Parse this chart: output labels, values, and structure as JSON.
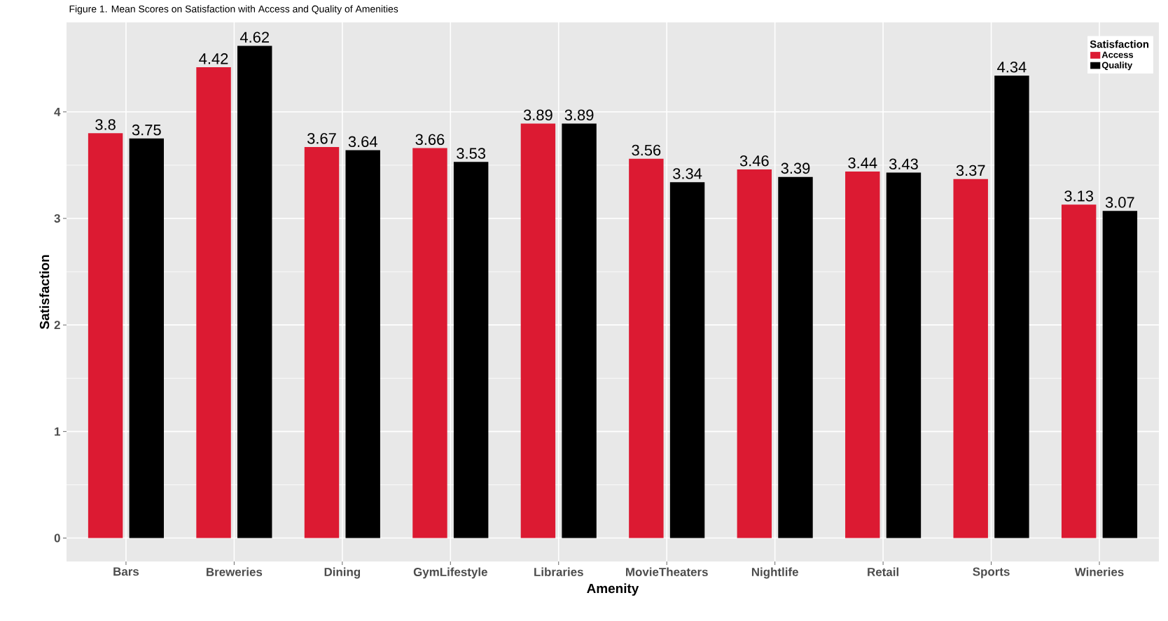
{
  "chart_data": {
    "type": "bar",
    "title": "Figure 1. Mean Scores on Satisfaction with Access and Quality of Amenities",
    "xlabel": "Amenity",
    "ylabel": "Satisfaction",
    "legend_title": "Satisfaction",
    "categories": [
      "Bars",
      "Breweries",
      "Dining",
      "GymLifestyle",
      "Libraries",
      "MovieTheaters",
      "Nightlife",
      "Retail",
      "Sports",
      "Wineries"
    ],
    "series": [
      {
        "name": "Access",
        "color": "#dc1a32",
        "values": [
          3.8,
          4.42,
          3.67,
          3.66,
          3.89,
          3.56,
          3.46,
          3.44,
          3.37,
          3.13
        ]
      },
      {
        "name": "Quality",
        "color": "#000000",
        "values": [
          3.75,
          4.62,
          3.64,
          3.53,
          3.89,
          3.34,
          3.39,
          3.43,
          4.34,
          3.07
        ]
      }
    ],
    "ylim": [
      -0.22,
      4.84
    ],
    "yticks": [
      0,
      1,
      2,
      3,
      4
    ],
    "grid": true,
    "legend": "top right",
    "data_labels": true
  }
}
